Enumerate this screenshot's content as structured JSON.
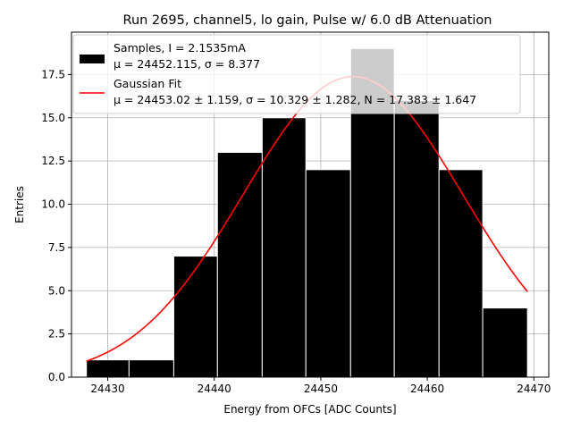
{
  "chart_data": {
    "type": "bar",
    "title": "Run 2695, channel5, lo gain, Pulse w/ 6.0 dB Attenuation",
    "xlabel": "Energy from OFCs [ADC Counts]",
    "ylabel": "Entries",
    "xlim": [
      2442.6,
      24471.4
    ],
    "ylim": [
      0,
      19.95
    ],
    "grid": true,
    "legend_position": "top-left",
    "xticks": [
      24430,
      24440,
      24450,
      24460,
      24470
    ],
    "yticks": [
      0.0,
      2.5,
      5.0,
      7.5,
      10.0,
      12.5,
      15.0,
      17.5
    ],
    "ytick_labels": [
      "0.0",
      "2.5",
      "5.0",
      "7.5",
      "10.0",
      "12.5",
      "15.0",
      "17.5"
    ],
    "histogram": {
      "name": "Samples, I = 2.1535mA",
      "stats_label": "μ = 24452.115, σ = 8.377",
      "bin_edges": [
        24428.0,
        24432.0,
        24436.2,
        24440.3,
        24444.5,
        24448.6,
        24452.8,
        24456.9,
        24461.1,
        24465.2,
        24469.4
      ],
      "counts": [
        1,
        1,
        7,
        13,
        15,
        12,
        19,
        16,
        12,
        4
      ],
      "color": "#000000",
      "edge_color": "#ffffff"
    },
    "fit": {
      "name": "Gaussian Fit",
      "label": "μ = 24453.02 ± 1.159, σ = 10.329 ± 1.282, N = 17.383 ± 1.647",
      "mu": 24453.02,
      "sigma": 10.329,
      "N": 17.383,
      "x_range": [
        24428.0,
        24469.4
      ],
      "color": "#ff0000"
    }
  }
}
